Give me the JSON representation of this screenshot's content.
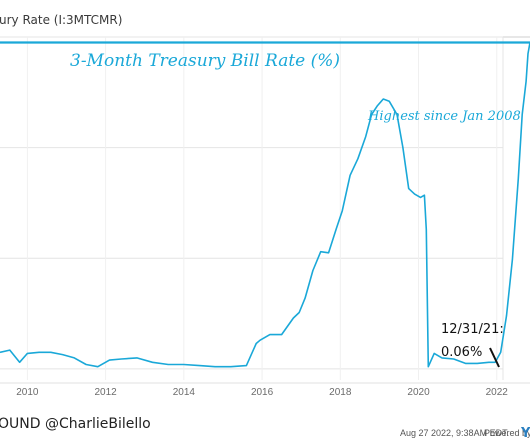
{
  "header": {
    "series_label": "ury Rate (I:3MTCMR)"
  },
  "annotations": {
    "title": "3-Month Treasury Bill Rate (%)",
    "highest": "Highest since Jan 2008",
    "note_date": "12/31/21:",
    "note_value": "0.06%"
  },
  "footer": {
    "left_text": "OUND @CharlieBilello",
    "timestamp": "Aug 27 2022, 9:38AM EDT.",
    "powered_by": "Powered by",
    "brand": "Y"
  },
  "colors": {
    "line": "#1aa8d8",
    "grid": "#e4e4e4",
    "highlight": "#1aa8d8",
    "border": "#cfcfcf"
  },
  "chart_data": {
    "type": "line",
    "title": "3-Month Treasury Bill Rate (%)",
    "x_ticks": [
      "2010",
      "2012",
      "2014",
      "2016",
      "2018",
      "2020",
      "2022"
    ],
    "xlim": [
      2009.3,
      2022.85
    ],
    "ylim": [
      -0.1,
      3.0
    ],
    "y_gridlines": [
      0.0,
      1.0,
      2.0,
      3.0
    ],
    "y_tick_labels_visible": false,
    "reference_line": {
      "value": 2.95,
      "label": "Highest since Jan 2008"
    },
    "series": [
      {
        "x": [
          2009.3,
          2009.55,
          2009.8,
          2010.0,
          2010.3,
          2010.6,
          2010.9,
          2011.2,
          2011.5,
          2011.8,
          2012.1,
          2012.4,
          2012.8,
          2013.2,
          2013.6,
          2014.0,
          2014.4,
          2014.8,
          2015.2,
          2015.6,
          2015.85,
          2015.95,
          2016.2,
          2016.5,
          2016.8,
          2016.95,
          2017.1,
          2017.3,
          2017.5,
          2017.7,
          2017.9,
          2018.05,
          2018.25,
          2018.45,
          2018.65,
          2018.8,
          2018.95,
          2019.1,
          2019.25,
          2019.45,
          2019.6,
          2019.75,
          2019.9,
          2020.05,
          2020.15,
          2020.2,
          2020.25,
          2020.4,
          2020.6,
          2020.9,
          2021.2,
          2021.5,
          2021.8,
          2021.96,
          2022.1,
          2022.25,
          2022.4,
          2022.55,
          2022.65,
          2022.75,
          2022.8,
          2022.85
        ],
        "y": [
          0.15,
          0.17,
          0.06,
          0.14,
          0.15,
          0.15,
          0.13,
          0.1,
          0.04,
          0.02,
          0.08,
          0.09,
          0.1,
          0.06,
          0.04,
          0.04,
          0.03,
          0.02,
          0.02,
          0.03,
          0.23,
          0.26,
          0.31,
          0.31,
          0.46,
          0.51,
          0.64,
          0.89,
          1.06,
          1.05,
          1.27,
          1.43,
          1.75,
          1.9,
          2.1,
          2.3,
          2.38,
          2.44,
          2.42,
          2.3,
          2.0,
          1.63,
          1.58,
          1.55,
          1.57,
          1.26,
          0.02,
          0.14,
          0.1,
          0.09,
          0.05,
          0.05,
          0.06,
          0.06,
          0.15,
          0.48,
          0.99,
          1.72,
          2.3,
          2.6,
          2.85,
          2.95
        ]
      }
    ]
  }
}
